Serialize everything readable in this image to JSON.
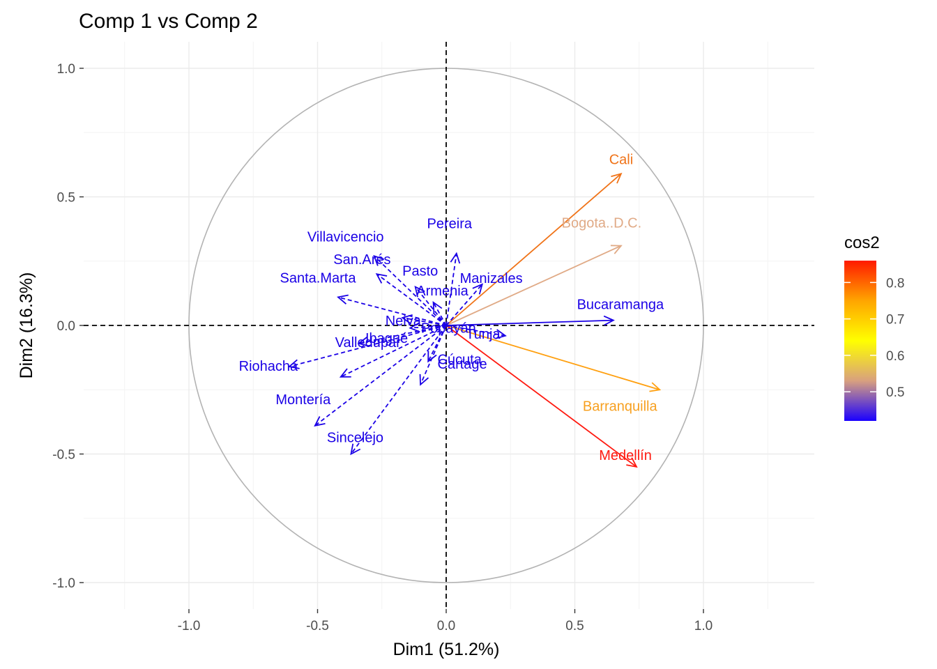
{
  "chart_data": {
    "type": "scatter",
    "subtype": "pca-variable-correlation-circle",
    "title": "Comp 1 vs Comp 2",
    "xlabel": "Dim1 (51.2%)",
    "ylabel": "Dim2 (16.3%)",
    "xlim": [
      -1.46,
      1.46
    ],
    "ylim": [
      -1.1,
      1.1
    ],
    "x_ticks": [
      -1.0,
      -0.5,
      0.0,
      0.5,
      1.0
    ],
    "x_tick_labels": [
      "-1.0",
      "-0.5",
      "0.0",
      "0.5",
      "1.0"
    ],
    "y_ticks": [
      -1.0,
      -0.5,
      0.0,
      0.5,
      1.0
    ],
    "y_tick_labels": [
      "-1.0",
      "-0.5",
      "0.0",
      "0.5",
      "1.0"
    ],
    "grid": true,
    "unit_circle": true,
    "legend": {
      "title": "cos2",
      "position": "right",
      "type": "colorbar",
      "range": [
        0.42,
        0.86
      ],
      "ticks": [
        0.5,
        0.6,
        0.7,
        0.8
      ],
      "tick_labels": [
        "0.5",
        "0.6",
        "0.7",
        "0.8"
      ],
      "colors": [
        "#1a00ff",
        "#d8a07f",
        "#ffff00",
        "#ffa500",
        "#ff1a00"
      ]
    },
    "variables": [
      {
        "name": "Cali",
        "x": 0.68,
        "y": 0.59,
        "cos2": 0.81,
        "color": "#f07318",
        "line": "solid",
        "label_color": "#f07318"
      },
      {
        "name": "Bogota..D.C.",
        "x": 0.68,
        "y": 0.31,
        "cos2": 0.55,
        "color": "#e0aa86",
        "line": "solid",
        "label_color": "#e0aa86"
      },
      {
        "name": "Bucaramanga",
        "x": 0.65,
        "y": 0.02,
        "cos2": 0.42,
        "color": "#1a00e6",
        "line": "solid",
        "label_color": "#1a00e6"
      },
      {
        "name": "Barranquilla",
        "x": 0.83,
        "y": -0.25,
        "cos2": 0.75,
        "color": "#ffa010",
        "line": "solid",
        "label_color": "#f7a020"
      },
      {
        "name": "Medellín",
        "x": 0.74,
        "y": -0.55,
        "cos2": 0.86,
        "color": "#ff1a10",
        "line": "solid",
        "label_color": "#ff1a10"
      },
      {
        "name": "Tunja",
        "x": 0.23,
        "y": -0.04,
        "cos2": 0.42,
        "color": "#1a00e6",
        "line": "dashed",
        "label_color": "#1a00e6"
      },
      {
        "name": "Manizales",
        "x": 0.14,
        "y": 0.16,
        "cos2": 0.42,
        "color": "#1a00e6",
        "line": "dashed",
        "label_color": "#1a00e6"
      },
      {
        "name": "Pereira",
        "x": 0.04,
        "y": 0.28,
        "cos2": 0.42,
        "color": "#1a00e6",
        "line": "dashed",
        "label_color": "#1a00e6"
      },
      {
        "name": "Pasto",
        "x": -0.12,
        "y": 0.15,
        "cos2": 0.42,
        "color": "#1a00e6",
        "line": "dashed",
        "label_color": "#1a00e6"
      },
      {
        "name": "Armenia",
        "x": -0.05,
        "y": 0.09,
        "cos2": 0.42,
        "color": "#1a00e6",
        "line": "dashed",
        "label_color": "#1a00e6"
      },
      {
        "name": "Villavicencio",
        "x": -0.28,
        "y": 0.27,
        "cos2": 0.42,
        "color": "#1a00e6",
        "line": "dashed",
        "label_color": "#1a00e6"
      },
      {
        "name": "San.Arés",
        "x": -0.27,
        "y": 0.2,
        "cos2": 0.42,
        "color": "#1a00e6",
        "line": "dashed",
        "label_color": "#1a00e6"
      },
      {
        "name": "Santa.Marta",
        "x": -0.42,
        "y": 0.11,
        "cos2": 0.42,
        "color": "#1a00e6",
        "line": "dashed",
        "label_color": "#1a00e6"
      },
      {
        "name": "Neiva",
        "x": -0.17,
        "y": 0.03,
        "cos2": 0.42,
        "color": "#1a00e6",
        "line": "dashed",
        "label_color": "#1a00e6"
      },
      {
        "name": "Popayán",
        "x": -0.14,
        "y": -0.01,
        "cos2": 0.42,
        "color": "#1a00e6",
        "line": "dashed",
        "label_color": "#1a00e6"
      },
      {
        "name": "Ibagué",
        "x": -0.34,
        "y": -0.07,
        "cos2": 0.42,
        "color": "#1a00e6",
        "line": "dashed",
        "label_color": "#1a00e6"
      },
      {
        "name": "Riohacha",
        "x": -0.61,
        "y": -0.16,
        "cos2": 0.42,
        "color": "#1a00e6",
        "line": "dashed",
        "label_color": "#1a00e6"
      },
      {
        "name": "Cúcuta",
        "x": -0.07,
        "y": -0.14,
        "cos2": 0.42,
        "color": "#1a00e6",
        "line": "dashed",
        "label_color": "#1a00e6"
      },
      {
        "name": "Cartage",
        "x": -0.1,
        "y": -0.23,
        "cos2": 0.42,
        "color": "#1a00e6",
        "line": "dashed",
        "label_color": "#1a00e6"
      },
      {
        "name": "Valledupar",
        "x": -0.41,
        "y": -0.2,
        "cos2": 0.42,
        "color": "#1a00e6",
        "line": "dashed",
        "label_color": "#1a00e6"
      },
      {
        "name": "Montería",
        "x": -0.51,
        "y": -0.39,
        "cos2": 0.42,
        "color": "#1a00e6",
        "line": "dashed",
        "label_color": "#1a00e6"
      },
      {
        "name": "Sincelejo",
        "x": -0.37,
        "y": -0.5,
        "cos2": 0.42,
        "color": "#1a00e6",
        "line": "dashed",
        "label_color": "#1a00e6"
      }
    ]
  }
}
